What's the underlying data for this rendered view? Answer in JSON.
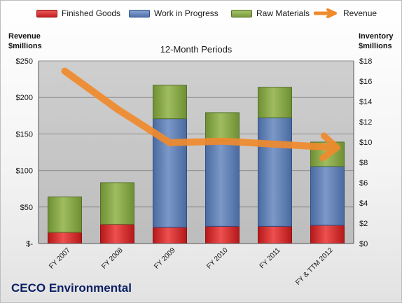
{
  "chart_data": {
    "type": "bar",
    "stacked": true,
    "title": "12-Month Periods",
    "categories": [
      "FY 2007",
      "FY 2008",
      "FY 2009",
      "FY 2010",
      "FY 2011",
      "FY & TTM 2012"
    ],
    "series": [
      {
        "name": "Finished Goods",
        "axis": "right",
        "color": "#d22a2a",
        "values": [
          1.1,
          1.9,
          1.6,
          1.7,
          1.7,
          1.8
        ]
      },
      {
        "name": "Work in Progress",
        "axis": "right",
        "color": "#5c7fb6",
        "values": [
          0,
          0,
          10.7,
          8.5,
          10.7,
          5.8
        ]
      },
      {
        "name": "Raw Materials",
        "axis": "right",
        "color": "#8aa94c",
        "values": [
          3.5,
          4.1,
          3.3,
          2.7,
          3.0,
          2.4
        ]
      },
      {
        "name": "Revenue",
        "axis": "left",
        "type": "line",
        "color": "#f08a2c",
        "values": [
          236,
          184,
          138,
          140,
          136,
          132
        ]
      }
    ],
    "y_left": {
      "label_line1": "Revenue",
      "label_line2": "$millions",
      "range": [
        0,
        250
      ],
      "ticks": [
        "$-",
        "$50",
        "$100",
        "$150",
        "$200",
        "$250"
      ]
    },
    "y_right": {
      "label_line1": "Inventory",
      "label_line2": "$millions",
      "range": [
        0,
        18
      ],
      "ticks": [
        "$0",
        "$2",
        "$4",
        "$6",
        "$8",
        "$10",
        "$12",
        "$14",
        "$16",
        "$18"
      ]
    },
    "grid": true,
    "legend_position": "top"
  },
  "company_name": "CECO Environmental"
}
